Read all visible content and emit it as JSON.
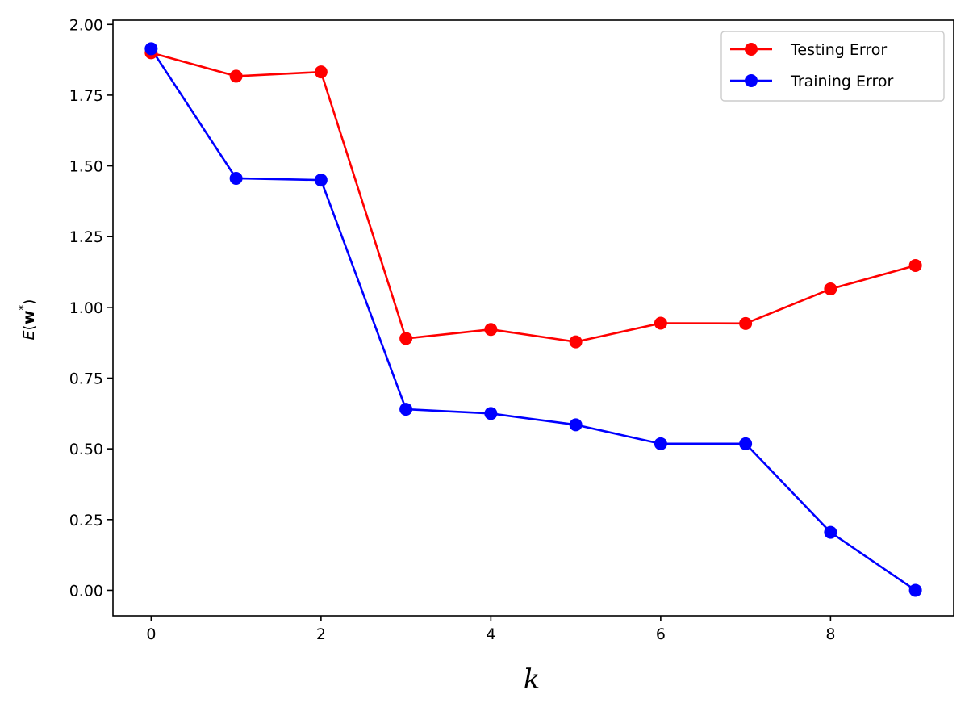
{
  "chart_data": {
    "type": "line",
    "title": "",
    "xlabel": "k",
    "ylabel": {
      "symbol": "E",
      "open": "(",
      "vector": "w",
      "superscript": "*",
      "close": ")"
    },
    "xlim": [
      -0.45,
      9.45
    ],
    "ylim": [
      -0.09,
      2.015
    ],
    "xticks": [
      0,
      2,
      4,
      6,
      8
    ],
    "xtick_labels": [
      "0",
      "2",
      "4",
      "6",
      "8"
    ],
    "yticks": [
      0.0,
      0.25,
      0.5,
      0.75,
      1.0,
      1.25,
      1.5,
      1.75,
      2.0
    ],
    "ytick_labels": [
      "0.00",
      "0.25",
      "0.50",
      "0.75",
      "1.00",
      "1.25",
      "1.50",
      "1.75",
      "2.00"
    ],
    "grid": false,
    "legend_position": "top-right",
    "x": [
      0,
      1,
      2,
      3,
      4,
      5,
      6,
      7,
      8,
      9
    ],
    "series": [
      {
        "name": "Testing Error",
        "color": "#ff0000",
        "marker": "circle",
        "values": [
          1.9,
          1.817,
          1.832,
          0.89,
          0.922,
          0.878,
          0.944,
          0.943,
          1.065,
          1.148
        ]
      },
      {
        "name": "Training Error",
        "color": "#0000ff",
        "marker": "circle",
        "values": [
          1.914,
          1.456,
          1.45,
          0.64,
          0.625,
          0.585,
          0.518,
          0.518,
          0.205,
          0.0
        ]
      }
    ]
  }
}
